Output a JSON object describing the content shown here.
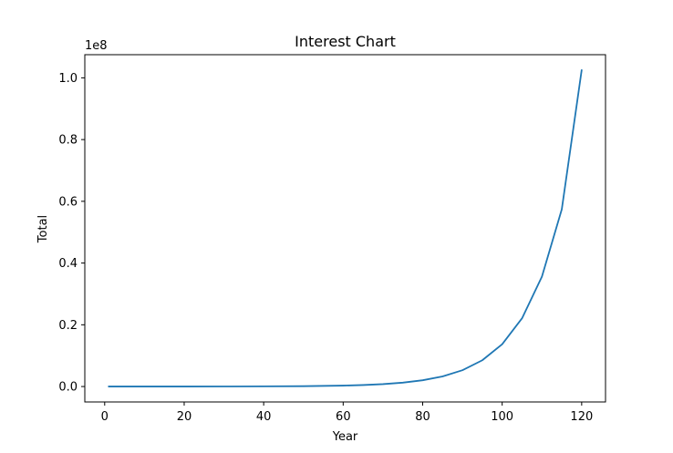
{
  "chart_data": {
    "type": "line",
    "title": "Interest Chart",
    "xlabel": "Year",
    "ylabel": "Total",
    "offset_label": "1e8",
    "xlim": [
      -5,
      126
    ],
    "ylim": [
      -5000000,
      107500000
    ],
    "x_ticks": [
      0,
      20,
      40,
      60,
      80,
      100,
      120
    ],
    "x_tick_labels": [
      "0",
      "20",
      "40",
      "60",
      "80",
      "100",
      "120"
    ],
    "y_ticks": [
      0,
      20000000,
      40000000,
      60000000,
      80000000,
      100000000
    ],
    "y_tick_labels": [
      "0.0",
      "0.2",
      "0.4",
      "0.6",
      "0.8",
      "1.0"
    ],
    "grid": false,
    "series": [
      {
        "color": "#1f77b4",
        "x": [
          1,
          10,
          20,
          30,
          40,
          50,
          60,
          65,
          70,
          75,
          80,
          85,
          90,
          95,
          100,
          105,
          110,
          115,
          120
        ],
        "y": [
          1100,
          2600,
          6700,
          17500,
          45000,
          117000,
          300000,
          485000,
          780000,
          1260000,
          2030000,
          3280000,
          5280000,
          8510000,
          13700000,
          22100000,
          35600000,
          57400000,
          102500000
        ]
      }
    ]
  }
}
